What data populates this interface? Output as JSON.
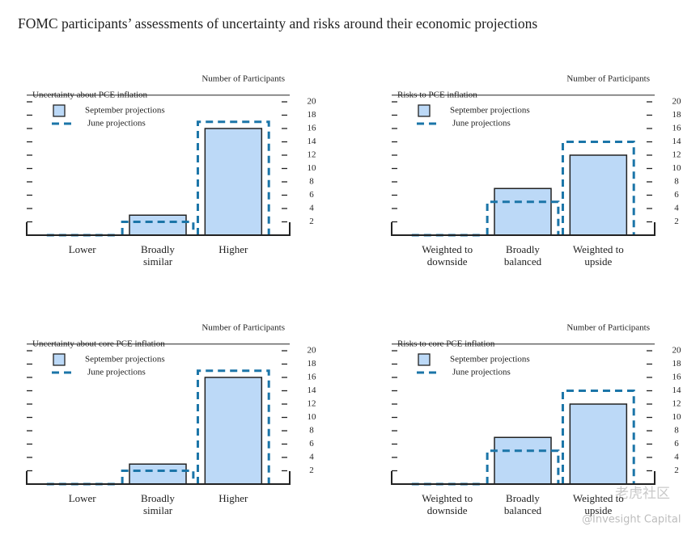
{
  "title": "FOMC participants’ assessments of uncertainty and risks around their economic projections",
  "watermark": {
    "site": "老虎社区",
    "handle": "@Invesight Capital"
  },
  "chart_data": [
    {
      "type": "bar",
      "title": "Uncertainty about PCE inflation",
      "ylabel": "Number of Participants",
      "categories": [
        [
          "Lower"
        ],
        [
          "Broadly",
          "similar"
        ],
        [
          "Higher"
        ]
      ],
      "series": [
        {
          "name": "September projections",
          "color": "#bcd9f7",
          "values": [
            0,
            3,
            16
          ]
        },
        {
          "name": "June projections",
          "color": "#1b75a8",
          "style": "dashed",
          "values": [
            0,
            2,
            17
          ]
        }
      ],
      "ylim": [
        0,
        21
      ],
      "yticks": [
        2,
        4,
        6,
        8,
        10,
        12,
        14,
        16,
        18,
        20
      ],
      "legend": "upper left"
    },
    {
      "type": "bar",
      "title": "Risks to PCE inflation",
      "ylabel": "Number of Participants",
      "categories": [
        [
          "Weighted to",
          "downside"
        ],
        [
          "Broadly",
          "balanced"
        ],
        [
          "Weighted to",
          "upside"
        ]
      ],
      "series": [
        {
          "name": "September projections",
          "color": "#bcd9f7",
          "values": [
            0,
            7,
            12
          ]
        },
        {
          "name": "June projections",
          "color": "#1b75a8",
          "style": "dashed",
          "values": [
            0,
            5,
            14
          ]
        }
      ],
      "ylim": [
        0,
        21
      ],
      "yticks": [
        2,
        4,
        6,
        8,
        10,
        12,
        14,
        16,
        18,
        20
      ],
      "legend": "upper left"
    },
    {
      "type": "bar",
      "title": "Uncertainty about core PCE inflation",
      "ylabel": "Number of Participants",
      "categories": [
        [
          "Lower"
        ],
        [
          "Broadly",
          "similar"
        ],
        [
          "Higher"
        ]
      ],
      "series": [
        {
          "name": "September projections",
          "color": "#bcd9f7",
          "values": [
            0,
            3,
            16
          ]
        },
        {
          "name": "June projections",
          "color": "#1b75a8",
          "style": "dashed",
          "values": [
            0,
            2,
            17
          ]
        }
      ],
      "ylim": [
        0,
        21
      ],
      "yticks": [
        2,
        4,
        6,
        8,
        10,
        12,
        14,
        16,
        18,
        20
      ],
      "legend": "upper left"
    },
    {
      "type": "bar",
      "title": "Risks to core PCE inflation",
      "ylabel": "Number of Participants",
      "categories": [
        [
          "Weighted to",
          "downside"
        ],
        [
          "Broadly",
          "balanced"
        ],
        [
          "Weighted to",
          "upside"
        ]
      ],
      "series": [
        {
          "name": "September projections",
          "color": "#bcd9f7",
          "values": [
            0,
            7,
            12
          ]
        },
        {
          "name": "June projections",
          "color": "#1b75a8",
          "style": "dashed",
          "values": [
            0,
            5,
            14
          ]
        }
      ],
      "ylim": [
        0,
        21
      ],
      "yticks": [
        2,
        4,
        6,
        8,
        10,
        12,
        14,
        16,
        18,
        20
      ],
      "legend": "upper left"
    }
  ]
}
